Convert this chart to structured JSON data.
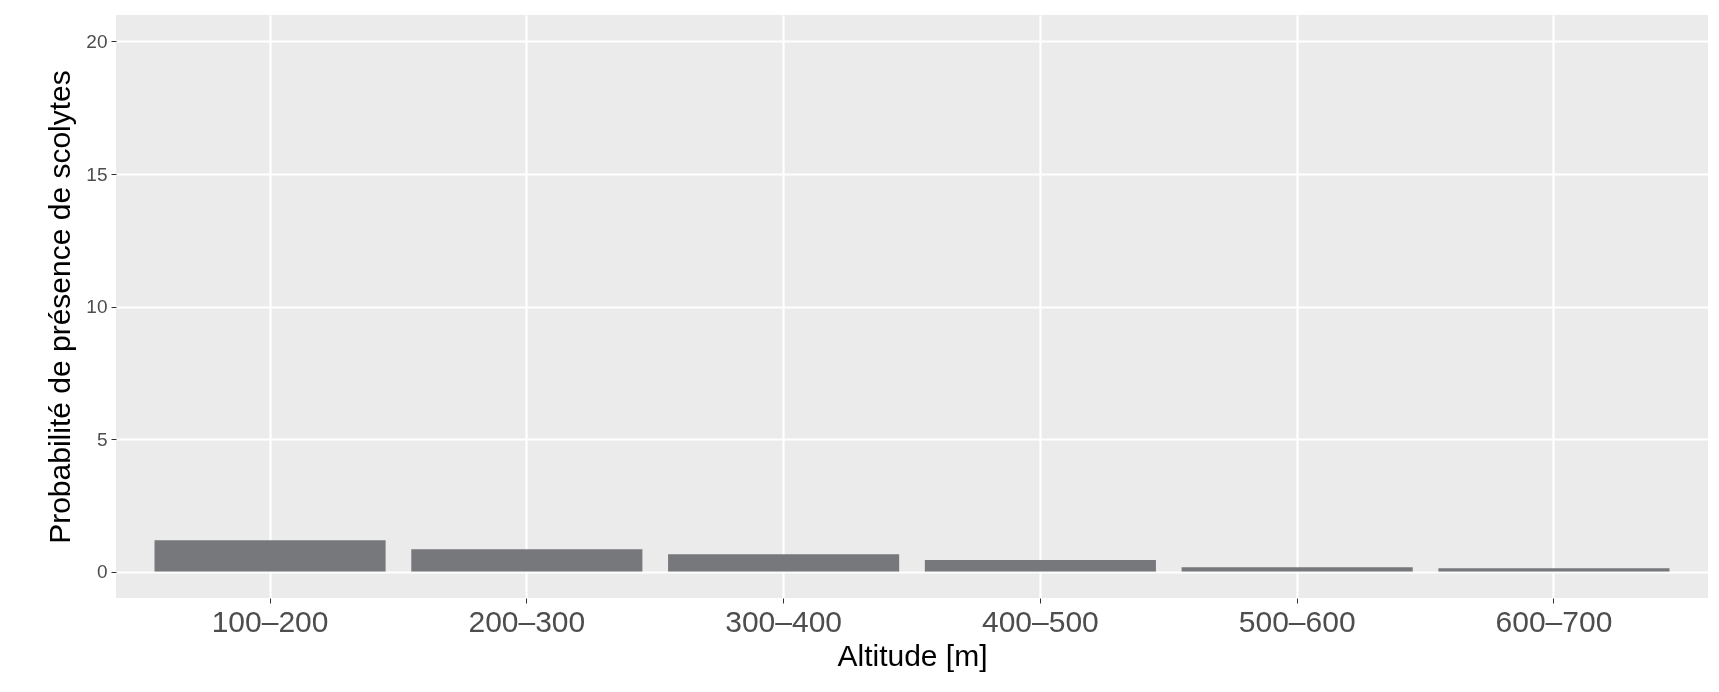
{
  "chart_data": {
    "type": "bar",
    "xlabel": "Altitude [m]",
    "ylabel": "Probabilité de présence de scolytes",
    "categories": [
      "100–200",
      "200–300",
      "300–400",
      "400–500",
      "500–600",
      "600–700"
    ],
    "values": [
      1.18,
      0.84,
      0.65,
      0.43,
      0.16,
      0.12
    ],
    "color": "#77787b",
    "ylim": [
      -1,
      21
    ],
    "yticks": [
      0,
      5,
      10,
      15,
      20
    ],
    "grid": true
  }
}
